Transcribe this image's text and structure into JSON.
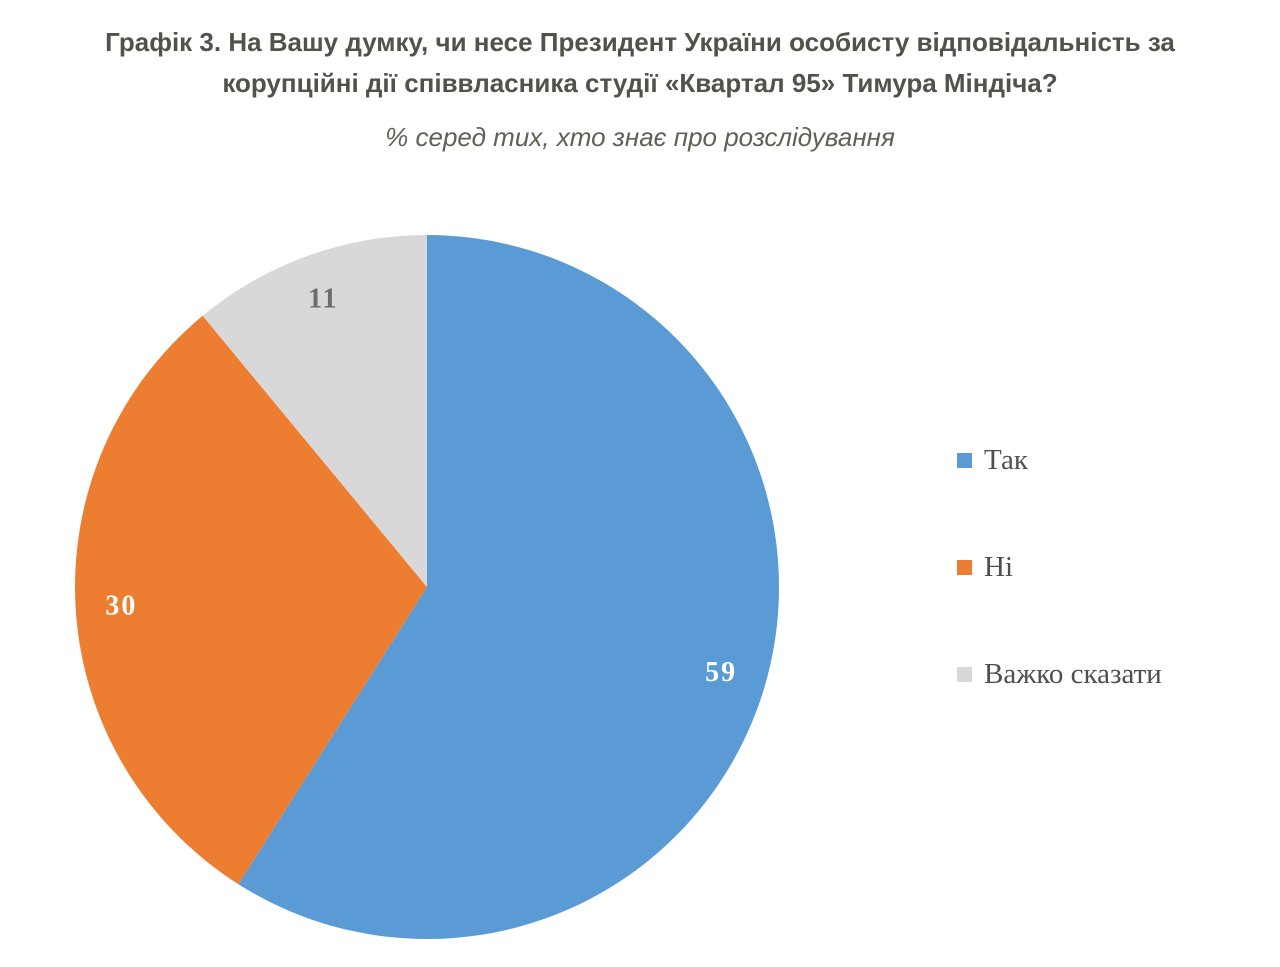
{
  "title": {
    "line1": "Графік 3. На Вашу думку, чи несе Президент України особисту відповідальність за",
    "line2": "корупційні дії співвласника студії «Квартал 95» Тимура Міндіча?",
    "subtitle": "% серед тих, хто знає про розслідування"
  },
  "chart_data": {
    "type": "pie",
    "title": "Графік 3. На Вашу думку, чи несе Президент України особисту відповідальність за корупційні дії співвласника студії «Квартал 95» Тимура Міндіча?",
    "subtitle": "% серед тих, хто знає про розслідування",
    "categories": [
      "Так",
      "Ні",
      "Важко сказати"
    ],
    "values": [
      59,
      30,
      11
    ],
    "slices": [
      {
        "label": "Так",
        "value": 59,
        "color": "#5B9BD5",
        "label_color": "#FFFFFF"
      },
      {
        "label": "Ні",
        "value": 30,
        "color": "#ED7D31",
        "label_color": "#FFFFFF"
      },
      {
        "label": "Важко сказати",
        "value": 11,
        "color": "#D8D8D8",
        "label_color": "#6D6D6D"
      }
    ],
    "start_angle_deg": 0,
    "direction": "clockwise",
    "label_radius_ratio": 0.87,
    "legend_position": "right",
    "data_labels_shown": true,
    "units": "%"
  }
}
